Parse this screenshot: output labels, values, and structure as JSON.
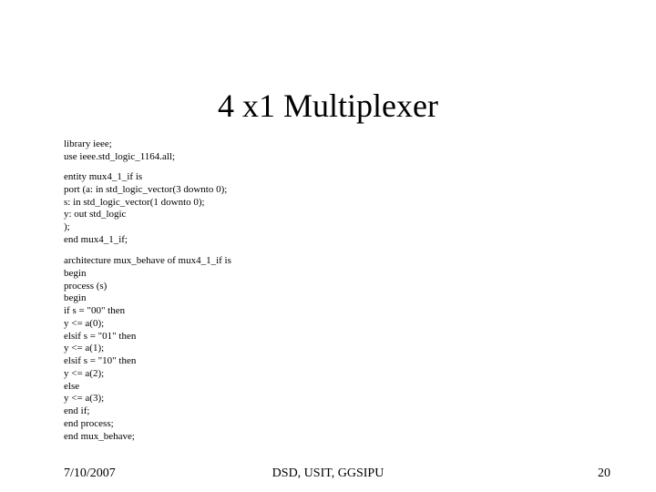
{
  "title": "4 x1 Multiplexer",
  "code": {
    "block1": "library ieee;\nuse ieee.std_logic_1164.all;",
    "block2": "entity mux4_1_if is\nport (a: in std_logic_vector(3 downto 0);\ns: in std_logic_vector(1 downto 0);\ny: out std_logic\n);\nend mux4_1_if;",
    "block3": "architecture mux_behave of mux4_1_if is\nbegin\nprocess (s)\nbegin\nif s = \"00\" then\ny <= a(0);\nelsif s = \"01\" then\ny <= a(1);\nelsif s = \"10\" then\ny <= a(2);\nelse\ny <= a(3);\nend if;\nend process;\nend mux_behave;"
  },
  "footer": {
    "date": "7/10/2007",
    "center": "DSD, USIT, GGSIPU",
    "page": "20"
  },
  "colors": {
    "background": "#ffffff",
    "text": "#000000"
  },
  "fonts": {
    "title_size": 36,
    "code_size": 11,
    "footer_size": 14,
    "family": "Times New Roman"
  }
}
